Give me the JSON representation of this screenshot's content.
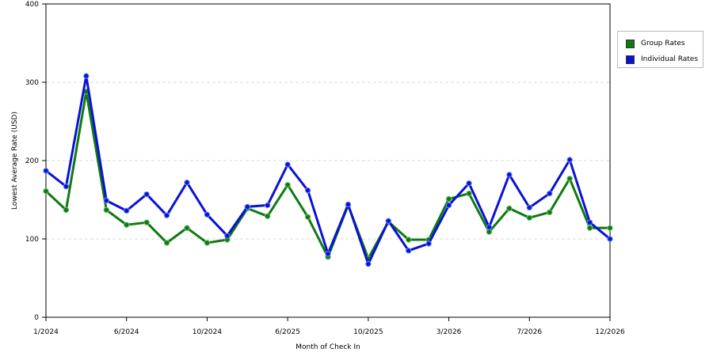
{
  "chart_data": {
    "type": "line",
    "xlabel": "Month of Check In",
    "ylabel": "Lowest Average Rate (USD)",
    "ylim": [
      0,
      400
    ],
    "yticks": [
      0,
      100,
      200,
      300,
      400
    ],
    "xticks": [
      {
        "index": 0,
        "label": "1/2024"
      },
      {
        "index": 4,
        "label": "6/2024"
      },
      {
        "index": 8,
        "label": "10/2024"
      },
      {
        "index": 12,
        "label": "6/2025"
      },
      {
        "index": 16,
        "label": "10/2025"
      },
      {
        "index": 20,
        "label": "3/2026"
      },
      {
        "index": 24,
        "label": "7/2026"
      },
      {
        "index": 28,
        "label": "12/2026"
      }
    ],
    "grid": "horizontal dashed",
    "legend_position": "right",
    "series": [
      {
        "name": "Group Rates",
        "color": "#0f7a0f",
        "values": [
          161,
          137,
          288,
          137,
          118,
          121,
          95,
          114,
          95,
          99,
          139,
          129,
          169,
          128,
          77,
          143,
          75,
          122,
          99,
          99,
          151,
          158,
          109,
          139,
          127,
          134,
          177,
          114,
          114
        ]
      },
      {
        "name": "Individual Rates",
        "color": "#0a12d4",
        "values": [
          187,
          167,
          308,
          149,
          136,
          157,
          130,
          172,
          131,
          104,
          141,
          143,
          195,
          162,
          81,
          144,
          68,
          123,
          85,
          94,
          143,
          171,
          115,
          182,
          140,
          158,
          201,
          121,
          100
        ]
      }
    ]
  }
}
